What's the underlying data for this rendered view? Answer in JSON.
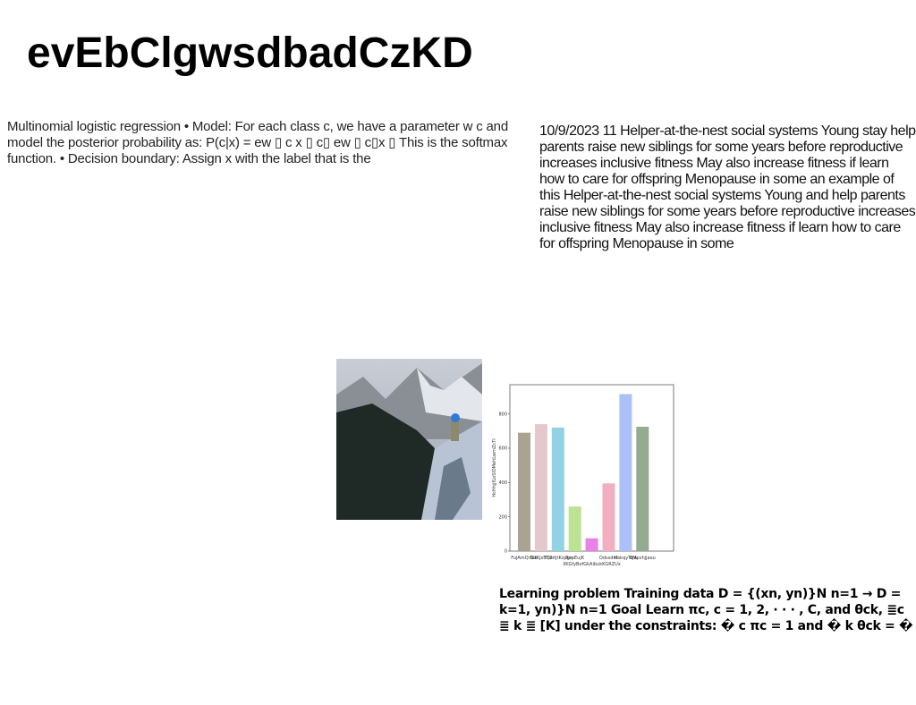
{
  "header": {
    "title": "evEbClgwsdbadCzKD"
  },
  "left_text": "Multinomial logistic regression • Model: For each class c, we have a parameter w c and model the posterior probability as: P(c|x) = ew ▯ c x ▯ c▯ ew ▯ c▯x ▯ This is the softmax function. • Decision boundary: Assign x with the label that is the",
  "right_text": "10/9/2023 11 Helper-at-the-nest social systems Young stay help parents raise new siblings for some years before reproductive increases inclusive fitness May also increase fitness if learn how to care for offspring Menopause in some an example of this Helper-at-the-nest social systems Young and help parents raise new siblings for some years before reproductive increases inclusive fitness May also increase fitness if learn how to care for offspring Menopause in some",
  "bottom_text": "Learning problem Training data D = {(xn, yn)}N n=1 → D = k=1, yn)}N n=1 Goal Learn πc, c = 1, 2, · · · , C, and θck, ≣c ≣ k ≣ [K] under the constraints: � c πc = 1 and � k θck = �",
  "chart_data": {
    "type": "bar",
    "y_label": "HcHhjjfLoSIOMehLwmZcTI",
    "categories": [
      "FujAmQrBiK",
      "GxKjxlITU",
      "TQbitjtKzpgn",
      "RvpEujK",
      "IlKGfyBofGkAibukKGRZUx",
      "Odssdvc",
      "MskqyTqw",
      "BMpvhjjaeu"
    ],
    "values": [
      690,
      740,
      720,
      260,
      75,
      395,
      915,
      725
    ],
    "colors": [
      "#aba392",
      "#e5c8ce",
      "#92d2e5",
      "#bde294",
      "#ea80ea",
      "#f2afc2",
      "#abbff8",
      "#92ab91"
    ],
    "ylim": [
      0,
      970
    ],
    "yticks": [
      0,
      200,
      400,
      600,
      800
    ]
  }
}
